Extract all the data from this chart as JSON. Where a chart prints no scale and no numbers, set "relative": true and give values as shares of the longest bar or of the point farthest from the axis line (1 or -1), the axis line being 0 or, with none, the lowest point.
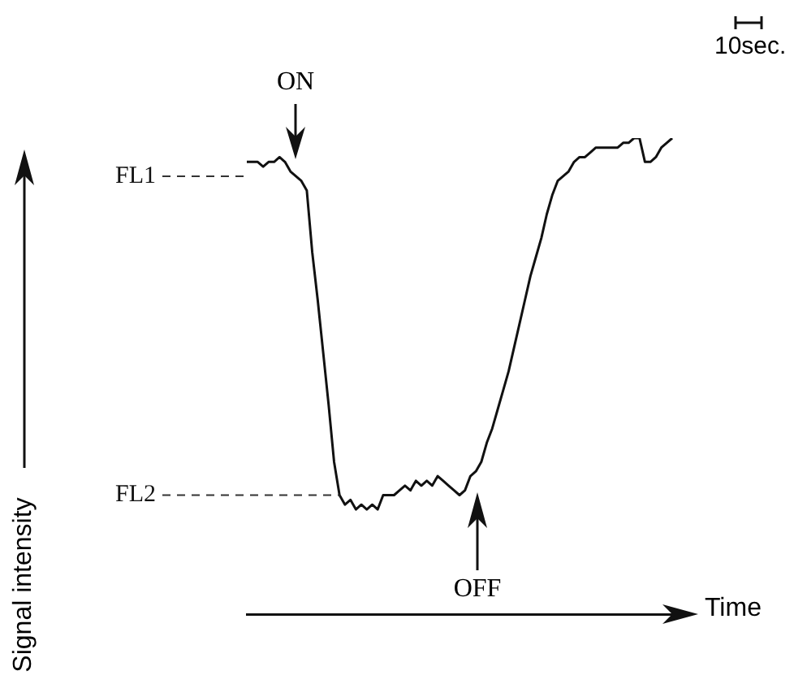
{
  "chart_data": {
    "type": "line",
    "relative": true,
    "xlabel": "Time",
    "categories": [
      null,
      null,
      null,
      null,
      null,
      null,
      null,
      null,
      null,
      null,
      null,
      null,
      null,
      null,
      null,
      null,
      null,
      null,
      null,
      null,
      null,
      null,
      null,
      null,
      null,
      null,
      null,
      null,
      null,
      null,
      null,
      null,
      null,
      null,
      null,
      null,
      null,
      null,
      null,
      null,
      null,
      null,
      null,
      null,
      null,
      null,
      null,
      null,
      null,
      null,
      null,
      null,
      null,
      null,
      null,
      null,
      null,
      null,
      null,
      null,
      null,
      null,
      null,
      null,
      null,
      null,
      null,
      null,
      null,
      null,
      null,
      null,
      null,
      null,
      null,
      null,
      null,
      null,
      null
    ],
    "series": [
      {
        "color": "#111111",
        "values": [
          0.95,
          0.95,
          0.95,
          0.94,
          0.95,
          0.95,
          0.96,
          0.95,
          0.93,
          0.92,
          0.91,
          0.89,
          0.76,
          0.66,
          0.55,
          0.44,
          0.32,
          0.25,
          0.23,
          0.24,
          0.22,
          0.23,
          0.22,
          0.23,
          0.22,
          0.25,
          0.25,
          0.25,
          0.26,
          0.27,
          0.26,
          0.28,
          0.27,
          0.28,
          0.27,
          0.29,
          0.28,
          0.27,
          0.26,
          0.25,
          0.26,
          0.29,
          0.3,
          0.32,
          0.36,
          0.39,
          0.43,
          0.47,
          0.51,
          0.56,
          0.61,
          0.66,
          0.71,
          0.75,
          0.79,
          0.84,
          0.88,
          0.91,
          0.92,
          0.93,
          0.95,
          0.96,
          0.96,
          0.97,
          0.98,
          0.98,
          0.98,
          0.98,
          0.98,
          0.99,
          0.99,
          1.0,
          1.0,
          0.95,
          0.95,
          0.96,
          0.98,
          0.99,
          1
        ]
      }
    ],
    "ref_lines": [
      {
        "axis": "y",
        "value": 0.92,
        "label": "FL1",
        "line_style": "dashed",
        "color": "#333333"
      },
      {
        "axis": "y",
        "value": 0.25,
        "label": "FL2",
        "line_style": "dashed",
        "color": "#333333"
      }
    ],
    "annotations": [
      "ON",
      "OFF",
      "10sec.",
      "Signal intensity"
    ],
    "legend": false,
    "grid": false,
    "marker": "none",
    "line_style": "solid"
  }
}
